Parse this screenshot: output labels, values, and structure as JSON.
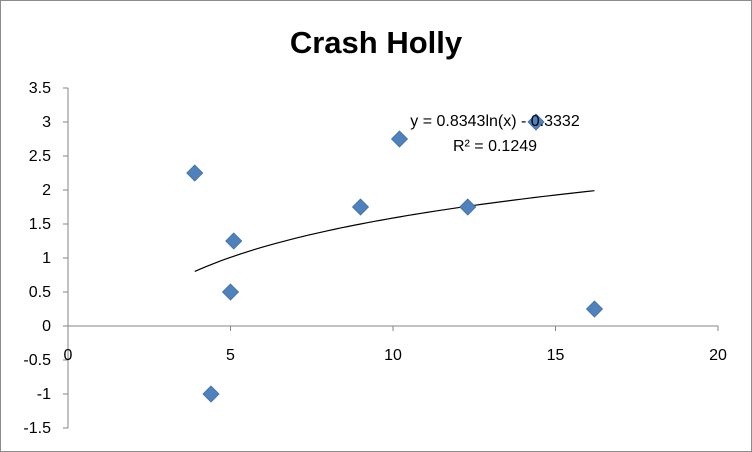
{
  "chart_data": {
    "type": "scatter",
    "title": "Crash Holly",
    "xlabel": "",
    "ylabel": "",
    "xlim": [
      0,
      20
    ],
    "ylim": [
      -1.5,
      3.5
    ],
    "xticks": [
      0,
      5,
      10,
      15,
      20
    ],
    "yticks": [
      3.5,
      3,
      2.5,
      2,
      1.5,
      1,
      0.5,
      0,
      -0.5,
      -1,
      -1.5
    ],
    "xtick_labels": [
      "0",
      "5",
      "10",
      "15",
      "20"
    ],
    "ytick_labels": [
      "3.5",
      "3",
      "2.5",
      "2",
      "1.5",
      "1",
      "0.5",
      "0",
      "-0.5",
      "-1",
      "-1.5"
    ],
    "grid": false,
    "legend": "none",
    "marker": "diamond",
    "marker_color": "#4f81bd",
    "series": [
      {
        "x": [
          3.9,
          4.4,
          5.0,
          5.1,
          9.0,
          10.2,
          12.3,
          14.4,
          16.2
        ],
        "y": [
          2.25,
          -1.0,
          0.5,
          1.25,
          1.75,
          2.75,
          1.75,
          3.0,
          0.25
        ]
      }
    ],
    "trendline": {
      "type": "logarithmic",
      "a": 0.8343,
      "b": -0.3332,
      "x_range": [
        3.9,
        16.2
      ],
      "color": "#000000",
      "equation_text": "y = 0.8343ln(x) - 0.3332",
      "r2_text": "R² = 0.1249"
    }
  }
}
